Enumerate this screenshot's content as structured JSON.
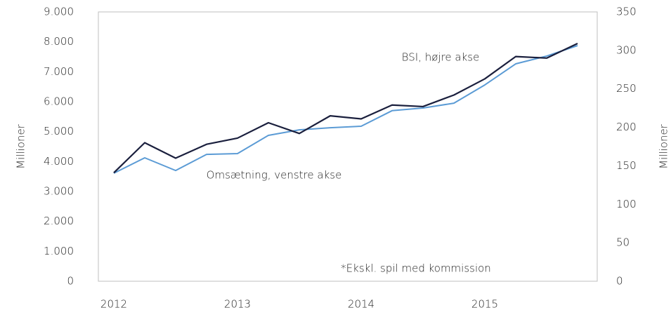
{
  "chart_data": {
    "type": "line",
    "categories": [
      "2012",
      null,
      null,
      null,
      "2013",
      null,
      null,
      null,
      "2014",
      null,
      null,
      null,
      "2015",
      null,
      null,
      null
    ],
    "series": [
      {
        "name": "Omsætning, venstre akse",
        "color": "#5b9bd5",
        "axis": "y",
        "values": [
          3610,
          4125,
          3700,
          4240,
          4265,
          4875,
          5060,
          5130,
          5180,
          5700,
          5790,
          5950,
          6560,
          7265,
          7525,
          7875
        ]
      },
      {
        "name": "BSI, højre akse",
        "color": "#1a1f3d",
        "axis": "y2",
        "values": [
          141,
          180,
          160,
          178,
          186,
          206,
          192,
          215,
          211,
          229,
          227,
          242,
          263,
          292,
          290,
          309
        ]
      }
    ],
    "ylabel": "Millioner",
    "y2label": "Millioner",
    "annotation": "*Ekskl. spil med kommission",
    "ylim": [
      0,
      9000
    ],
    "yticks": [
      0,
      {
        "value": 1000,
        "label": "1.000"
      },
      {
        "value": 2000,
        "label": "2.000"
      },
      {
        "value": 3000,
        "label": "3.000"
      },
      {
        "value": 4000,
        "label": "4.000"
      },
      {
        "value": 5000,
        "label": "5.000"
      },
      {
        "value": 6000,
        "label": "6.000"
      },
      {
        "value": 7000,
        "label": "7.000"
      },
      {
        "value": 8000,
        "label": "8.000"
      },
      {
        "value": 9000,
        "label": "9.000"
      }
    ],
    "y2lim": [
      0,
      350
    ],
    "y2ticks": [
      0,
      50,
      100,
      150,
      200,
      250,
      300,
      350
    ]
  }
}
